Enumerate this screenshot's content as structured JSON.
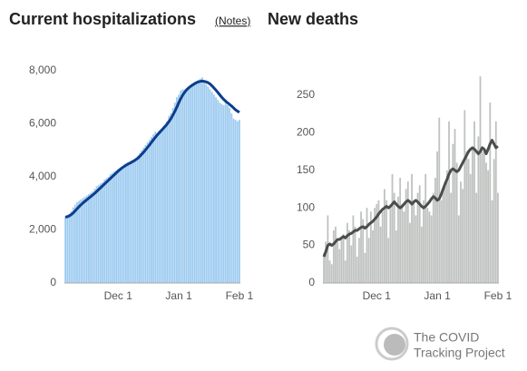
{
  "notes_link": "(Notes)",
  "logo": [
    "The COVID",
    "Tracking Project"
  ],
  "chart_data": [
    {
      "type": "bar",
      "title": "Current hospitalizations",
      "categories": [
        null,
        null,
        null,
        null,
        null,
        null,
        null,
        null,
        null,
        null,
        null,
        null,
        null,
        null,
        null,
        null,
        null,
        null,
        null,
        null,
        null,
        null,
        null,
        null,
        null,
        null,
        null,
        "Dec 1",
        null,
        null,
        null,
        null,
        null,
        null,
        null,
        null,
        null,
        null,
        null,
        null,
        null,
        null,
        null,
        null,
        null,
        null,
        null,
        null,
        null,
        null,
        null,
        null,
        null,
        null,
        null,
        null,
        null,
        null,
        "Jan 1",
        null,
        null,
        null,
        null,
        null,
        null,
        null,
        null,
        null,
        null,
        null,
        null,
        null,
        null,
        null,
        null,
        null,
        null,
        null,
        null,
        null,
        null,
        null,
        null,
        null,
        null,
        null,
        null,
        null,
        null,
        "Feb 1"
      ],
      "series": [
        {
          "type": "bar",
          "color": "#9ecbf0",
          "values": [
            2500,
            2550,
            2600,
            2700,
            2850,
            2950,
            3050,
            3100,
            3150,
            3200,
            3250,
            3300,
            3350,
            3400,
            3450,
            3550,
            3650,
            3700,
            3750,
            3800,
            3900,
            3950,
            4000,
            4100,
            4150,
            4200,
            4250,
            4300,
            4350,
            4400,
            4450,
            4500,
            4550,
            4550,
            4600,
            4650,
            4700,
            4800,
            4900,
            5000,
            5100,
            5200,
            5300,
            5400,
            5500,
            5600,
            5700,
            5650,
            5750,
            5800,
            5900,
            5950,
            6100,
            6300,
            6400,
            6600,
            6800,
            7000,
            7100,
            7250,
            7300,
            7300,
            7350,
            7400,
            7450,
            7500,
            7550,
            7600,
            7650,
            7700,
            7750,
            7600,
            7500,
            7400,
            7300,
            7200,
            7100,
            7000,
            6900,
            6800,
            6750,
            6700,
            6800,
            6700,
            6600,
            6400,
            6200,
            6150,
            6100,
            6150
          ]
        },
        {
          "type": "line",
          "color": "#0d3e8c",
          "values": [
            2480,
            2500,
            2530,
            2580,
            2640,
            2720,
            2800,
            2880,
            2950,
            3020,
            3080,
            3140,
            3200,
            3260,
            3320,
            3380,
            3450,
            3520,
            3590,
            3660,
            3730,
            3800,
            3870,
            3940,
            4010,
            4080,
            4150,
            4220,
            4280,
            4340,
            4390,
            4440,
            4480,
            4520,
            4560,
            4600,
            4650,
            4700,
            4770,
            4850,
            4930,
            5020,
            5110,
            5200,
            5300,
            5400,
            5490,
            5580,
            5660,
            5740,
            5820,
            5900,
            5990,
            6090,
            6200,
            6330,
            6470,
            6630,
            6800,
            6950,
            7080,
            7190,
            7280,
            7350,
            7410,
            7460,
            7510,
            7550,
            7580,
            7600,
            7610,
            7600,
            7580,
            7550,
            7500,
            7430,
            7350,
            7270,
            7180,
            7090,
            7000,
            6920,
            6850,
            6790,
            6730,
            6670,
            6600,
            6530,
            6480,
            6430
          ]
        }
      ],
      "ylim": [
        0,
        8000
      ],
      "yticks": [
        0,
        {
          "value": 2000,
          "label": "2,000"
        },
        {
          "value": 4000,
          "label": "4,000"
        },
        {
          "value": 6000,
          "label": "6,000"
        },
        {
          "value": 8000,
          "label": "8,000"
        }
      ]
    },
    {
      "type": "bar",
      "title": "New deaths",
      "categories": [
        null,
        null,
        null,
        null,
        null,
        null,
        null,
        null,
        null,
        null,
        null,
        null,
        null,
        null,
        null,
        null,
        null,
        null,
        null,
        null,
        null,
        null,
        null,
        null,
        null,
        null,
        null,
        "Dec 1",
        null,
        null,
        null,
        null,
        null,
        null,
        null,
        null,
        null,
        null,
        null,
        null,
        null,
        null,
        null,
        null,
        null,
        null,
        null,
        null,
        null,
        null,
        null,
        null,
        null,
        null,
        null,
        null,
        null,
        null,
        "Jan 1",
        null,
        null,
        null,
        null,
        null,
        null,
        null,
        null,
        null,
        null,
        null,
        null,
        null,
        null,
        null,
        null,
        null,
        null,
        null,
        null,
        null,
        null,
        null,
        null,
        null,
        null,
        null,
        null,
        null,
        null,
        "Feb 1"
      ],
      "series": [
        {
          "type": "bar",
          "color": "#bfc2c0",
          "values": [
            40,
            55,
            90,
            30,
            25,
            70,
            75,
            55,
            45,
            60,
            65,
            30,
            80,
            70,
            50,
            90,
            75,
            35,
            60,
            95,
            85,
            40,
            100,
            60,
            95,
            70,
            100,
            105,
            110,
            75,
            95,
            125,
            110,
            60,
            100,
            145,
            120,
            70,
            115,
            140,
            105,
            95,
            125,
            135,
            80,
            145,
            110,
            90,
            120,
            130,
            75,
            110,
            145,
            100,
            95,
            90,
            120,
            140,
            175,
            220,
            110,
            125,
            130,
            150,
            215,
            120,
            185,
            205,
            160,
            90,
            135,
            125,
            230,
            175,
            165,
            145,
            180,
            215,
            120,
            195,
            275,
            175,
            180,
            160,
            150,
            240,
            110,
            165,
            215,
            120
          ]
        },
        {
          "type": "line",
          "color": "#4a4d4c",
          "values": [
            35,
            42,
            50,
            52,
            50,
            52,
            55,
            58,
            58,
            60,
            62,
            60,
            63,
            65,
            66,
            68,
            70,
            70,
            72,
            74,
            75,
            73,
            75,
            78,
            80,
            82,
            85,
            88,
            92,
            95,
            98,
            100,
            102,
            100,
            102,
            105,
            108,
            105,
            102,
            100,
            102,
            105,
            108,
            110,
            108,
            105,
            108,
            110,
            108,
            105,
            102,
            100,
            102,
            105,
            108,
            112,
            115,
            113,
            110,
            112,
            118,
            125,
            132,
            138,
            145,
            150,
            152,
            150,
            148,
            150,
            155,
            160,
            165,
            170,
            175,
            178,
            180,
            178,
            175,
            172,
            175,
            180,
            178,
            172,
            178,
            185,
            190,
            185,
            180,
            182
          ]
        }
      ],
      "ylim": [
        0,
        280
      ],
      "yticks": [
        0,
        50,
        100,
        150,
        200,
        250
      ]
    }
  ]
}
